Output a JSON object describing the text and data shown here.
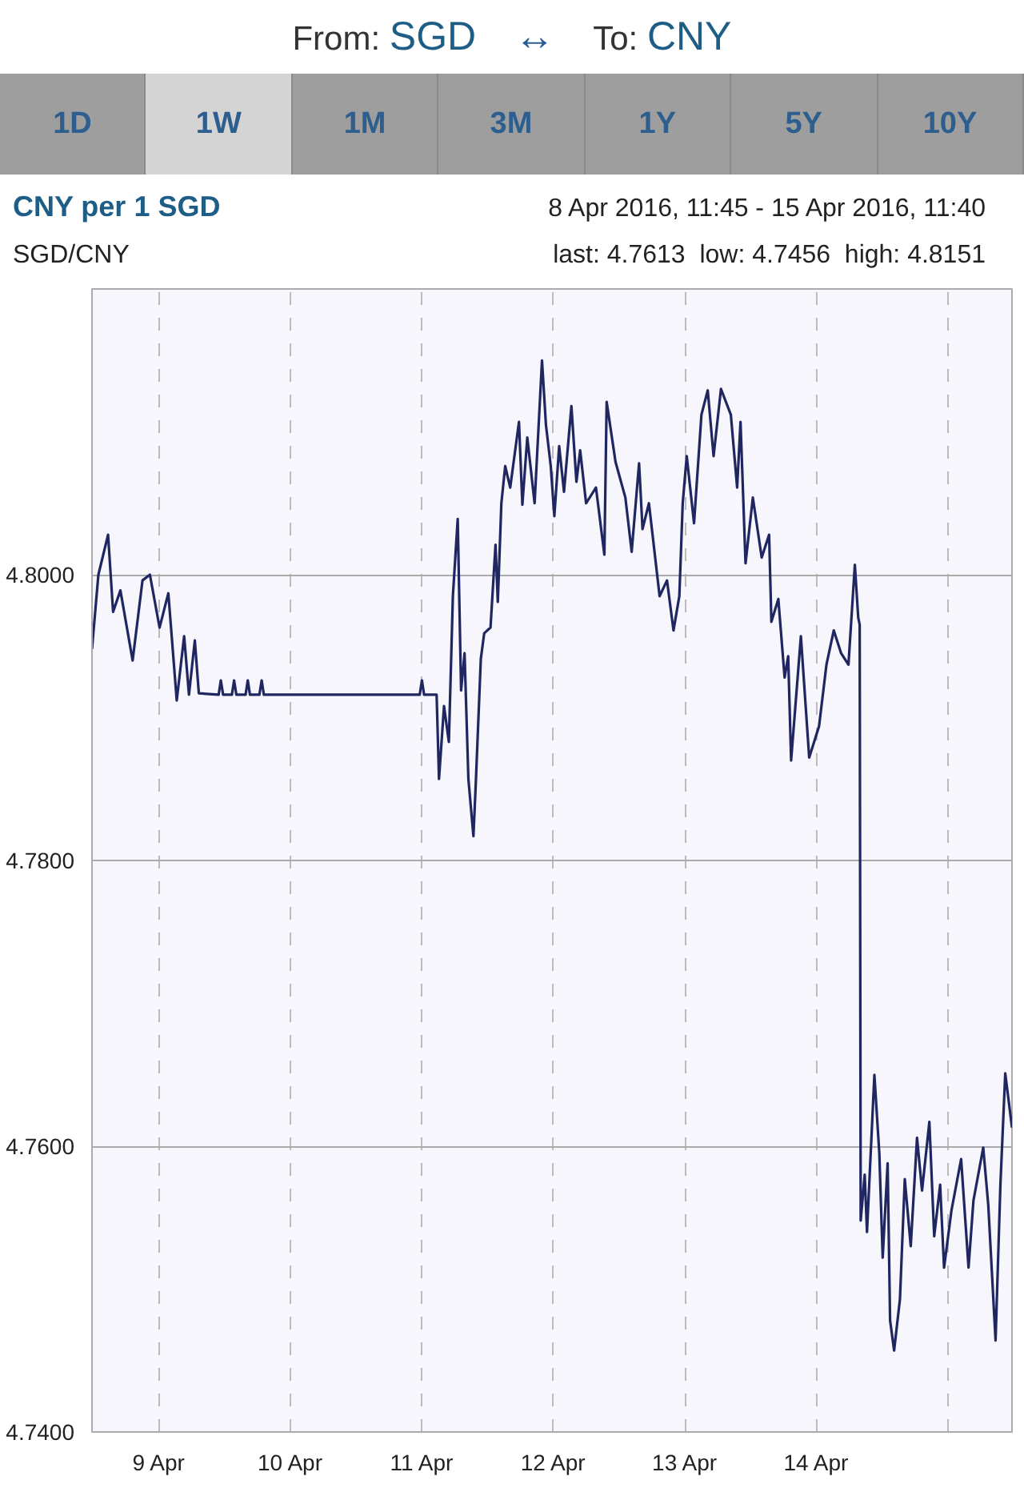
{
  "chart_data": {
    "type": "line",
    "title": "CNY per 1 SGD",
    "subtitle": "SGD/CNY",
    "annotations": [
      "From:",
      "SGD",
      "↔",
      "To:",
      "CNY",
      "1D",
      "1W",
      "1M",
      "3M",
      "1Y",
      "5Y",
      "10Y",
      "8 Apr 2016, 11:45 - 15 Apr 2016, 11:40",
      "last: 4.7613",
      "low: 4.7456",
      "high: 4.8151"
    ],
    "xlim": [
      "2016-04-08T11:45",
      "2016-04-15T11:40"
    ],
    "xticks": [
      {
        "value": "2016-04-09",
        "label": "9 Apr"
      },
      {
        "value": "2016-04-10",
        "label": "10 Apr"
      },
      {
        "value": "2016-04-11",
        "label": "11 Apr"
      },
      {
        "value": "2016-04-12",
        "label": "12 Apr"
      },
      {
        "value": "2016-04-13",
        "label": "13 Apr"
      },
      {
        "value": "2016-04-14",
        "label": "14 Apr"
      },
      {
        "value": "2016-04-15",
        "label": null
      }
    ],
    "ylim": [
      4.74,
      4.82
    ],
    "yticks": [
      {
        "value": 4.74,
        "label": "4.7400"
      },
      {
        "value": 4.76,
        "label": "4.7600"
      },
      {
        "value": 4.78,
        "label": "4.7800"
      },
      {
        "value": 4.8,
        "label": "4.8000"
      }
    ],
    "grid": true,
    "series": [
      {
        "color": "#1f2660",
        "x": [
          "2016-04-08T11:45",
          "2016-04-08T12:55",
          "2016-04-08T14:41",
          "2016-04-08T15:36",
          "2016-04-08T16:56",
          "2016-04-08T19:10",
          "2016-04-08T20:58",
          "2016-04-08T22:19",
          "2016-04-09T00:05",
          "2016-04-09T01:41",
          "2016-04-09T03:13",
          "2016-04-09T04:34",
          "2016-04-09T05:27",
          "2016-04-09T06:31",
          "2016-04-09T07:15",
          "2016-04-09T10:52",
          "2016-04-09T11:16",
          "2016-04-09T11:41",
          "2016-04-09T13:17",
          "2016-04-09T13:41",
          "2016-04-09T14:06",
          "2016-04-09T15:47",
          "2016-04-09T16:11",
          "2016-04-09T16:35",
          "2016-04-09T18:18",
          "2016-04-09T18:43",
          "2016-04-09T19:07",
          "2016-04-10T23:34",
          "2016-04-10T23:58",
          "2016-04-11T00:22",
          "2016-04-11T02:39",
          "2016-04-11T03:05",
          "2016-04-11T04:00",
          "2016-04-11T04:53",
          "2016-04-11T05:37",
          "2016-04-11T06:30",
          "2016-04-11T07:07",
          "2016-04-11T07:45",
          "2016-04-11T08:27",
          "2016-04-11T09:22",
          "2016-04-11T09:48",
          "2016-04-11T10:43",
          "2016-04-11T11:20",
          "2016-04-11T12:29",
          "2016-04-11T13:24",
          "2016-04-11T13:49",
          "2016-04-11T14:28",
          "2016-04-11T15:10",
          "2016-04-11T16:05",
          "2016-04-11T17:41",
          "2016-04-11T18:18",
          "2016-04-11T19:12",
          "2016-04-11T20:32",
          "2016-04-11T21:53",
          "2016-04-11T22:36",
          "2016-04-11T23:29",
          "2016-04-12T00:08",
          "2016-04-12T01:01",
          "2016-04-12T01:54",
          "2016-04-12T03:15",
          "2016-04-12T04:10",
          "2016-04-12T04:51",
          "2016-04-12T05:56",
          "2016-04-12T07:44",
          "2016-04-12T09:16",
          "2016-04-12T09:41",
          "2016-04-12T11:18",
          "2016-04-12T13:06",
          "2016-04-12T14:15",
          "2016-04-12T15:36",
          "2016-04-12T16:14",
          "2016-04-12T17:24",
          "2016-04-12T19:21",
          "2016-04-12T20:42",
          "2016-04-12T21:53",
          "2016-04-12T22:57",
          "2016-04-12T23:34",
          "2016-04-13T00:18",
          "2016-04-13T01:38",
          "2016-04-13T02:59",
          "2016-04-13T04:08",
          "2016-04-13T05:12",
          "2016-04-13T06:33",
          "2016-04-13T08:21",
          "2016-04-13T09:30",
          "2016-04-13T10:07",
          "2016-04-13T11:02",
          "2016-04-13T12:22",
          "2016-04-13T13:59",
          "2016-04-13T15:20",
          "2016-04-13T15:45",
          "2016-04-13T17:01",
          "2016-04-13T18:10",
          "2016-04-13T18:49",
          "2016-04-13T19:21",
          "2016-04-13T21:08",
          "2016-04-13T22:39",
          "2016-04-14T00:27",
          "2016-04-14T01:48",
          "2016-04-14T03:08",
          "2016-04-14T04:29",
          "2016-04-14T05:49",
          "2016-04-14T06:59",
          "2016-04-14T07:36",
          "2016-04-14T07:52",
          "2016-04-14T08:03",
          "2016-04-14T08:47",
          "2016-04-14T09:12",
          "2016-04-14T10:33",
          "2016-04-14T11:27",
          "2016-04-14T12:04",
          "2016-04-14T12:58",
          "2016-04-14T13:25",
          "2016-04-14T14:09",
          "2016-04-14T15:13",
          "2016-04-14T16:06",
          "2016-04-14T17:11",
          "2016-04-14T18:20",
          "2016-04-14T19:15",
          "2016-04-14T20:35",
          "2016-04-14T21:28",
          "2016-04-14T22:33",
          "2016-04-14T23:16",
          "2016-04-15T00:37",
          "2016-04-15T02:23",
          "2016-04-15T03:44",
          "2016-04-15T04:38",
          "2016-04-15T06:25",
          "2016-04-15T07:20",
          "2016-04-15T08:40",
          "2016-04-15T09:33",
          "2016-04-15T10:26",
          "2016-04-15T11:40"
        ],
        "values": [
          4.7948,
          4.8,
          4.8028,
          4.7974,
          4.7989,
          4.794,
          4.7996,
          4.8,
          4.7963,
          4.7987,
          4.7912,
          4.7957,
          4.7916,
          4.7954,
          4.7917,
          4.7916,
          4.7926,
          4.7916,
          4.7916,
          4.7926,
          4.7916,
          4.7916,
          4.7926,
          4.7916,
          4.7916,
          4.7926,
          4.7916,
          4.7916,
          4.7926,
          4.7916,
          4.7916,
          4.7857,
          4.7908,
          4.7883,
          4.7985,
          4.8039,
          4.7919,
          4.7945,
          4.7857,
          4.7817,
          4.7854,
          4.7941,
          4.7959,
          4.7963,
          4.8021,
          4.7981,
          4.805,
          4.8076,
          4.8061,
          4.8107,
          4.8049,
          4.8096,
          4.805,
          4.815,
          4.8105,
          4.8076,
          4.8041,
          4.809,
          4.8058,
          4.8118,
          4.8065,
          4.8087,
          4.805,
          4.8061,
          4.8014,
          4.8121,
          4.8079,
          4.8054,
          4.8016,
          4.8078,
          4.8032,
          4.805,
          4.7985,
          4.7996,
          4.7961,
          4.7985,
          4.805,
          4.8083,
          4.8036,
          4.8112,
          4.8129,
          4.8083,
          4.813,
          4.8112,
          4.8061,
          4.8107,
          4.8008,
          4.8054,
          4.8012,
          4.8028,
          4.7967,
          4.7983,
          4.7928,
          4.7943,
          4.787,
          4.7957,
          4.7872,
          4.7894,
          4.7937,
          4.7961,
          4.7945,
          4.7937,
          4.8007,
          4.797,
          4.7965,
          4.7548,
          4.758,
          4.754,
          4.765,
          4.7595,
          4.7522,
          4.7588,
          4.7478,
          4.7457,
          4.7493,
          4.7577,
          4.753,
          4.7606,
          4.7569,
          4.7617,
          4.7537,
          4.7573,
          4.7515,
          4.7555,
          4.7591,
          4.7515,
          4.7562,
          4.7599,
          4.7559,
          4.7464,
          4.7573,
          4.7651,
          4.7613
        ]
      }
    ]
  }
}
